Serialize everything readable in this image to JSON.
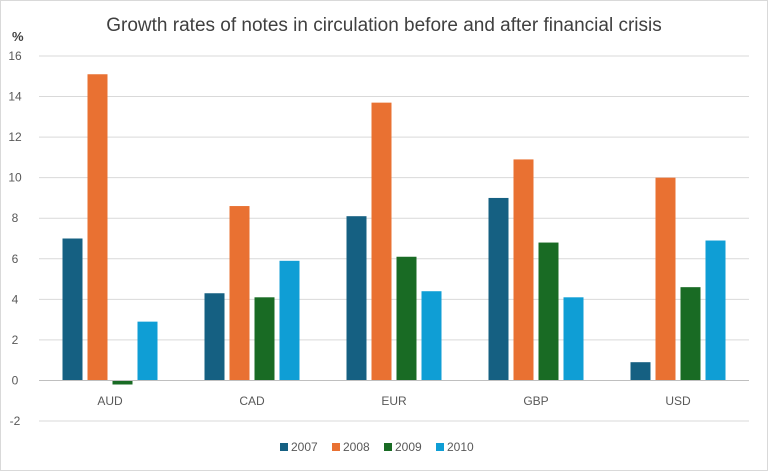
{
  "chart_data": {
    "type": "bar",
    "title": "Growth rates of notes in circulation before and after financial crisis",
    "ylabel": "%",
    "xlabel": "",
    "categories": [
      "AUD",
      "CAD",
      "EUR",
      "GBP",
      "USD"
    ],
    "series": [
      {
        "name": "2007",
        "color": "#156082",
        "values": [
          7.0,
          4.3,
          8.1,
          9.0,
          0.9
        ]
      },
      {
        "name": "2008",
        "color": "#e97132",
        "values": [
          15.1,
          8.6,
          13.7,
          10.9,
          10.0
        ]
      },
      {
        "name": "2009",
        "color": "#196b24",
        "values": [
          -0.2,
          4.1,
          6.1,
          6.8,
          4.6
        ]
      },
      {
        "name": "2010",
        "color": "#0f9ed5",
        "values": [
          2.9,
          5.9,
          4.4,
          4.1,
          6.9
        ]
      }
    ],
    "ylim": [
      -2,
      16
    ],
    "yticks": [
      -2,
      0,
      2,
      4,
      6,
      8,
      10,
      12,
      14,
      16
    ],
    "grid": true,
    "legend_position": "bottom"
  }
}
